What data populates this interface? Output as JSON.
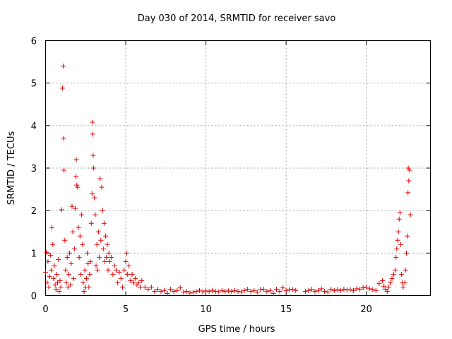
{
  "chart_data": {
    "type": "scatter",
    "title": "Day 030 of 2014, SRMTID for receiver savo",
    "xlabel": "GPS time / hours",
    "ylabel": "SRMTID / TECUs",
    "xlim": [
      0,
      24
    ],
    "ylim": [
      0,
      6
    ],
    "x_ticks": [
      "0",
      "5",
      "10",
      "15",
      "20"
    ],
    "y_ticks": [
      "0",
      "1",
      "2",
      "3",
      "4",
      "5",
      "6"
    ],
    "grid": true,
    "marker": "+",
    "color": "#e00000",
    "series": [
      {
        "name": "SRMTID",
        "points": [
          [
            0.0,
            0.55
          ],
          [
            0.05,
            1.02
          ],
          [
            0.1,
            0.3
          ],
          [
            0.15,
            0.8
          ],
          [
            0.2,
            0.2
          ],
          [
            0.25,
            0.45
          ],
          [
            0.3,
            0.95
          ],
          [
            0.35,
            0.6
          ],
          [
            0.4,
            1.6
          ],
          [
            0.45,
            1.2
          ],
          [
            0.5,
            0.4
          ],
          [
            0.55,
            0.7
          ],
          [
            0.6,
            0.25
          ],
          [
            0.65,
            0.15
          ],
          [
            0.7,
            0.5
          ],
          [
            0.75,
            0.3
          ],
          [
            0.8,
            0.85
          ],
          [
            0.85,
            0.1
          ],
          [
            0.9,
            0.35
          ],
          [
            0.95,
            0.2
          ],
          [
            1.0,
            2.02
          ],
          [
            1.05,
            4.88
          ],
          [
            1.1,
            5.4
          ],
          [
            1.12,
            3.7
          ],
          [
            1.15,
            2.95
          ],
          [
            1.2,
            1.3
          ],
          [
            1.25,
            0.6
          ],
          [
            1.3,
            0.3
          ],
          [
            1.35,
            0.9
          ],
          [
            1.4,
            0.2
          ],
          [
            1.45,
            0.5
          ],
          [
            1.5,
            1.0
          ],
          [
            1.55,
            0.25
          ],
          [
            1.6,
            0.75
          ],
          [
            1.65,
            2.1
          ],
          [
            1.7,
            1.5
          ],
          [
            1.75,
            0.4
          ],
          [
            1.8,
            1.1
          ],
          [
            1.85,
            2.05
          ],
          [
            1.9,
            2.8
          ],
          [
            1.92,
            3.2
          ],
          [
            1.95,
            2.6
          ],
          [
            2.0,
            2.55
          ],
          [
            2.05,
            1.6
          ],
          [
            2.1,
            0.9
          ],
          [
            2.15,
            1.4
          ],
          [
            2.2,
            0.5
          ],
          [
            2.25,
            1.9
          ],
          [
            2.3,
            1.2
          ],
          [
            2.35,
            0.3
          ],
          [
            2.4,
            0.1
          ],
          [
            2.45,
            0.6
          ],
          [
            2.5,
            0.2
          ],
          [
            2.55,
            0.4
          ],
          [
            2.6,
            1.0
          ],
          [
            2.65,
            0.75
          ],
          [
            2.7,
            0.2
          ],
          [
            2.75,
            0.5
          ],
          [
            2.8,
            0.8
          ],
          [
            2.85,
            1.7
          ],
          [
            2.9,
            2.4
          ],
          [
            2.92,
            4.08
          ],
          [
            2.95,
            3.8
          ],
          [
            2.97,
            3.3
          ],
          [
            3.0,
            3.0
          ],
          [
            3.05,
            2.3
          ],
          [
            3.1,
            1.9
          ],
          [
            3.15,
            0.7
          ],
          [
            3.2,
            1.2
          ],
          [
            3.25,
            0.6
          ],
          [
            3.3,
            1.5
          ],
          [
            3.35,
            0.9
          ],
          [
            3.4,
            2.75
          ],
          [
            3.45,
            1.3
          ],
          [
            3.5,
            2.55
          ],
          [
            3.55,
            2.0
          ],
          [
            3.6,
            1.1
          ],
          [
            3.65,
            1.7
          ],
          [
            3.7,
            0.8
          ],
          [
            3.75,
            1.4
          ],
          [
            3.8,
            0.9
          ],
          [
            3.85,
            1.2
          ],
          [
            3.9,
            0.6
          ],
          [
            3.95,
            1.0
          ],
          [
            4.0,
            0.8
          ],
          [
            4.1,
            0.9
          ],
          [
            4.2,
            0.5
          ],
          [
            4.3,
            0.7
          ],
          [
            4.4,
            0.6
          ],
          [
            4.5,
            0.3
          ],
          [
            4.6,
            0.55
          ],
          [
            4.7,
            0.4
          ],
          [
            4.8,
            0.2
          ],
          [
            4.9,
            0.6
          ],
          [
            5.0,
            0.8
          ],
          [
            5.05,
            1.0
          ],
          [
            5.1,
            0.5
          ],
          [
            5.2,
            0.7
          ],
          [
            5.3,
            0.35
          ],
          [
            5.4,
            0.5
          ],
          [
            5.5,
            0.3
          ],
          [
            5.6,
            0.4
          ],
          [
            5.7,
            0.25
          ],
          [
            5.8,
            0.3
          ],
          [
            5.9,
            0.2
          ],
          [
            6.0,
            0.35
          ],
          [
            6.2,
            0.2
          ],
          [
            6.4,
            0.15
          ],
          [
            6.6,
            0.2
          ],
          [
            6.8,
            0.1
          ],
          [
            7.0,
            0.15
          ],
          [
            7.2,
            0.1
          ],
          [
            7.4,
            0.12
          ],
          [
            7.6,
            0.05
          ],
          [
            7.8,
            0.15
          ],
          [
            8.0,
            0.1
          ],
          [
            8.2,
            0.12
          ],
          [
            8.4,
            0.18
          ],
          [
            8.6,
            0.08
          ],
          [
            8.8,
            0.1
          ],
          [
            9.0,
            0.06
          ],
          [
            9.2,
            0.08
          ],
          [
            9.4,
            0.1
          ],
          [
            9.6,
            0.12
          ],
          [
            9.8,
            0.09
          ],
          [
            10.0,
            0.11
          ],
          [
            10.2,
            0.1
          ],
          [
            10.4,
            0.12
          ],
          [
            10.6,
            0.1
          ],
          [
            10.8,
            0.09
          ],
          [
            11.0,
            0.12
          ],
          [
            11.2,
            0.1
          ],
          [
            11.4,
            0.11
          ],
          [
            11.6,
            0.1
          ],
          [
            11.8,
            0.12
          ],
          [
            12.0,
            0.1
          ],
          [
            12.2,
            0.08
          ],
          [
            12.4,
            0.12
          ],
          [
            12.6,
            0.15
          ],
          [
            12.8,
            0.1
          ],
          [
            13.0,
            0.12
          ],
          [
            13.2,
            0.08
          ],
          [
            13.4,
            0.14
          ],
          [
            13.6,
            0.15
          ],
          [
            13.8,
            0.1
          ],
          [
            14.0,
            0.12
          ],
          [
            14.2,
            0.05
          ],
          [
            14.4,
            0.15
          ],
          [
            14.6,
            0.1
          ],
          [
            14.8,
            0.18
          ],
          [
            15.0,
            0.12
          ],
          [
            15.2,
            0.14
          ],
          [
            15.4,
            0.15
          ],
          [
            15.6,
            0.12
          ],
          [
            16.2,
            0.1
          ],
          [
            16.4,
            0.12
          ],
          [
            16.6,
            0.15
          ],
          [
            16.8,
            0.1
          ],
          [
            17.0,
            0.12
          ],
          [
            17.2,
            0.16
          ],
          [
            17.4,
            0.1
          ],
          [
            17.6,
            0.08
          ],
          [
            17.8,
            0.15
          ],
          [
            18.0,
            0.12
          ],
          [
            18.2,
            0.14
          ],
          [
            18.4,
            0.12
          ],
          [
            18.6,
            0.15
          ],
          [
            18.8,
            0.13
          ],
          [
            19.0,
            0.14
          ],
          [
            19.2,
            0.12
          ],
          [
            19.4,
            0.16
          ],
          [
            19.6,
            0.15
          ],
          [
            19.8,
            0.18
          ],
          [
            20.0,
            0.2
          ],
          [
            20.2,
            0.16
          ],
          [
            20.4,
            0.14
          ],
          [
            20.6,
            0.12
          ],
          [
            20.8,
            0.28
          ],
          [
            21.0,
            0.35
          ],
          [
            21.1,
            0.22
          ],
          [
            21.2,
            0.15
          ],
          [
            21.3,
            0.1
          ],
          [
            21.4,
            0.2
          ],
          [
            21.5,
            0.3
          ],
          [
            21.6,
            0.4
          ],
          [
            21.7,
            0.5
          ],
          [
            21.8,
            0.6
          ],
          [
            21.85,
            0.9
          ],
          [
            21.9,
            1.1
          ],
          [
            21.95,
            1.3
          ],
          [
            22.0,
            1.5
          ],
          [
            22.05,
            1.8
          ],
          [
            22.1,
            1.95
          ],
          [
            22.15,
            1.2
          ],
          [
            22.2,
            0.5
          ],
          [
            22.25,
            0.3
          ],
          [
            22.3,
            0.2
          ],
          [
            22.4,
            0.3
          ],
          [
            22.45,
            0.6
          ],
          [
            22.5,
            1.0
          ],
          [
            22.55,
            1.4
          ],
          [
            22.6,
            2.42
          ],
          [
            22.62,
            3.0
          ],
          [
            22.65,
            2.7
          ],
          [
            22.7,
            2.95
          ],
          [
            22.75,
            1.9
          ]
        ]
      }
    ]
  }
}
